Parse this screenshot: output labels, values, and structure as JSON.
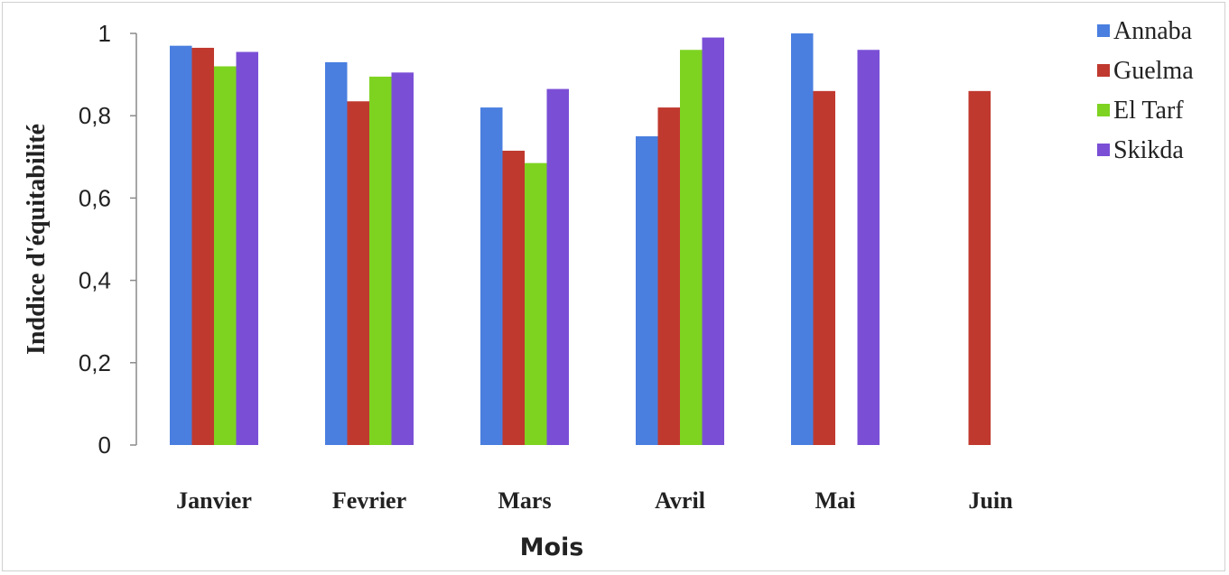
{
  "chart_data": {
    "type": "bar",
    "title": "",
    "xlabel": "Mois",
    "ylabel": "Inddice d'équitabilité",
    "ylim": [
      0,
      1
    ],
    "yticks": [
      0,
      0.2,
      0.4,
      0.6,
      0.8,
      1
    ],
    "ytick_labels": [
      "0",
      "0,2",
      "0,4",
      "0,6",
      "0,8",
      "1"
    ],
    "grid": false,
    "legend_position": "right",
    "categories": [
      "Janvier",
      "Fevrier",
      "Mars",
      "Avril",
      "Mai",
      "Juin"
    ],
    "series": [
      {
        "name": "Annaba",
        "color": "#4a7fe0",
        "values": [
          0.97,
          0.93,
          0.82,
          0.75,
          1.0,
          null
        ]
      },
      {
        "name": "Guelma",
        "color": "#c0392f",
        "values": [
          0.965,
          0.835,
          0.715,
          0.82,
          0.86,
          0.86
        ]
      },
      {
        "name": "El Tarf",
        "color": "#7ed321",
        "values": [
          0.92,
          0.895,
          0.685,
          0.96,
          null,
          null
        ]
      },
      {
        "name": "Skikda",
        "color": "#7a4fd6",
        "values": [
          0.955,
          0.905,
          0.865,
          0.99,
          0.96,
          null
        ]
      }
    ]
  }
}
